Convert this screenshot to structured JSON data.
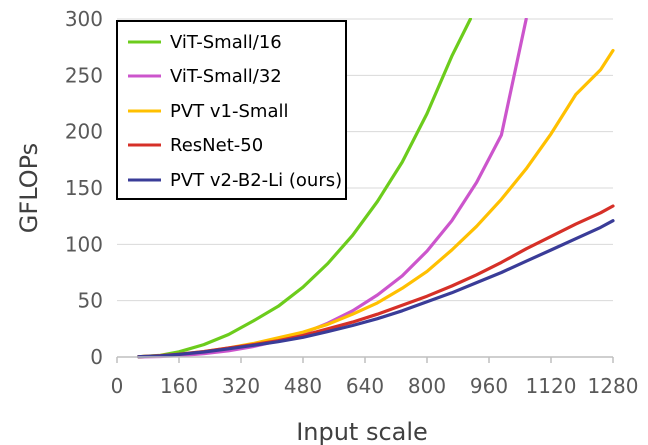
{
  "chart_data": {
    "type": "line",
    "title": "",
    "xlabel": "Input scale",
    "ylabel": "GFLOPs",
    "xlim": [
      0,
      1280
    ],
    "ylim": [
      0,
      300
    ],
    "xticks": [
      0,
      160,
      320,
      480,
      640,
      800,
      960,
      1120,
      1280
    ],
    "yticks": [
      0,
      50,
      100,
      150,
      200,
      250,
      300
    ],
    "grid": "horizontal",
    "legend_position": "top-left",
    "series": [
      {
        "name": "ViT-Small/16",
        "color": "#6ccc1c",
        "x": [
          56,
          112,
          160,
          224,
          288,
          352,
          416,
          480,
          544,
          608,
          672,
          736,
          800,
          864,
          912
        ],
        "y": [
          0.3,
          1.5,
          4.6,
          11,
          20,
          32,
          45,
          62,
          83,
          108,
          138,
          173,
          216,
          267,
          300
        ]
      },
      {
        "name": "ViT-Small/32",
        "color": "#cc55cc",
        "x": [
          56,
          112,
          160,
          224,
          288,
          352,
          416,
          480,
          544,
          608,
          672,
          736,
          800,
          864,
          928,
          992,
          1056
        ],
        "y": [
          0.1,
          0.4,
          1.2,
          2.9,
          5.5,
          9.3,
          14.4,
          21,
          30,
          41,
          55,
          72,
          94,
          121,
          155,
          197,
          300
        ]
      },
      {
        "name": "PVT v1-Small",
        "color": "#ffc000",
        "x": [
          56,
          112,
          160,
          224,
          288,
          352,
          416,
          480,
          544,
          608,
          672,
          736,
          800,
          864,
          928,
          992,
          1056,
          1120,
          1184,
          1248,
          1280
        ],
        "y": [
          0.3,
          1.2,
          2.5,
          4.8,
          8,
          12,
          17,
          22,
          29,
          38,
          48,
          61,
          76,
          95,
          116,
          140,
          167,
          198,
          233,
          255,
          272
        ]
      },
      {
        "name": "ResNet-50",
        "color": "#d63028",
        "x": [
          56,
          112,
          160,
          224,
          288,
          352,
          416,
          480,
          544,
          608,
          672,
          736,
          800,
          864,
          928,
          992,
          1056,
          1120,
          1184,
          1248,
          1280
        ],
        "y": [
          0.3,
          1.2,
          2.5,
          4.8,
          8,
          11,
          14.5,
          19,
          25,
          31,
          38,
          46,
          54,
          63,
          73,
          84,
          96,
          107,
          118,
          128,
          134
        ]
      },
      {
        "name": "PVT v2-B2-Li (ours)",
        "color": "#3a3c98",
        "x": [
          56,
          112,
          160,
          224,
          288,
          352,
          416,
          480,
          544,
          608,
          672,
          736,
          800,
          864,
          928,
          992,
          1056,
          1120,
          1184,
          1248,
          1280
        ],
        "y": [
          0.3,
          1.1,
          2.3,
          4.4,
          7.3,
          10.4,
          13.6,
          17.5,
          22.5,
          28,
          34,
          41,
          49,
          57,
          66,
          75,
          85,
          95,
          105,
          115,
          121
        ]
      }
    ]
  }
}
